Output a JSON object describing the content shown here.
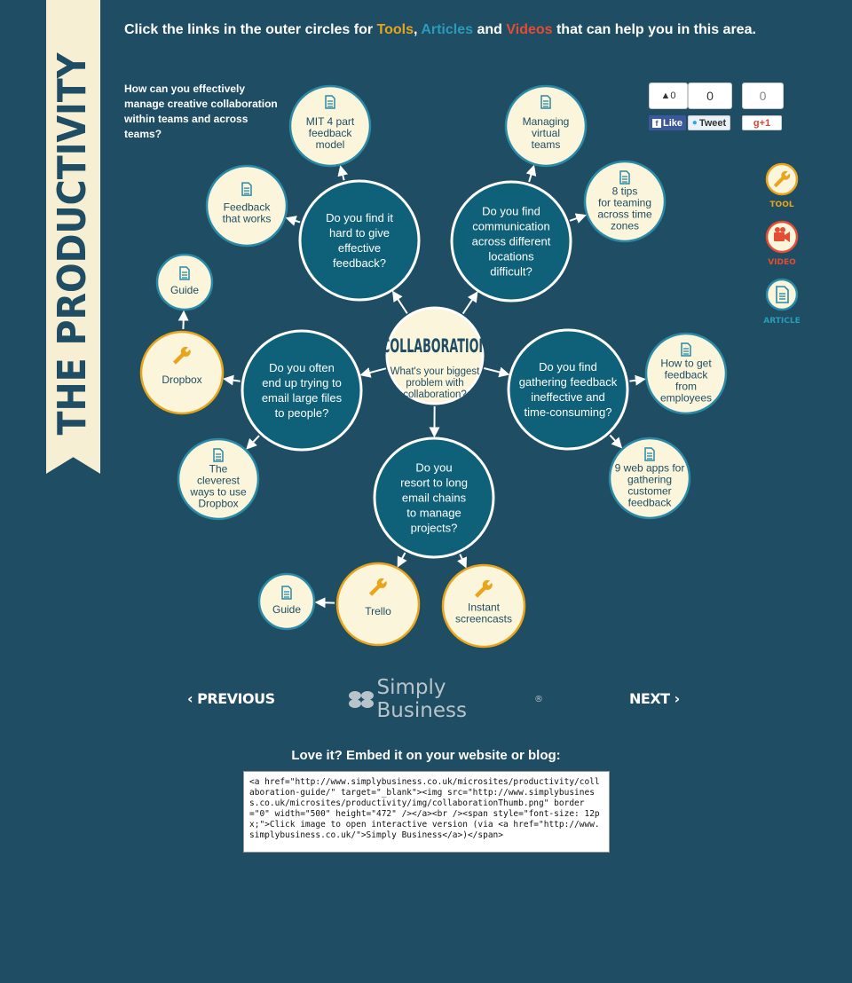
{
  "banner": {
    "title": "THE PRODUCTIVITY SERIES"
  },
  "headline": {
    "prefix": "Click the links in the outer circles for ",
    "tools": "Tools",
    "comma": ", ",
    "articles": "Articles",
    "and": " and ",
    "videos": "Videos",
    "suffix": " that can help you in this area."
  },
  "question": "How can you effectively manage creative collaboration within teams and across teams?",
  "social": {
    "fb_count": "0",
    "fb_label": "Like",
    "tw_count": "0",
    "tw_label": "Tweet",
    "gp_count": "0",
    "gp_label": "+1"
  },
  "legend": [
    {
      "type": "tool",
      "label": "TOOL",
      "icon": "wrench-icon",
      "color": "#e8a51c"
    },
    {
      "type": "video",
      "label": "VIDEO",
      "icon": "camera-icon",
      "color": "#e34d34"
    },
    {
      "type": "article",
      "label": "ARTICLE",
      "icon": "document-icon",
      "color": "#2a9bb8"
    }
  ],
  "colors": {
    "background": "#1f4d63",
    "hub_fill": "#0e6178",
    "node_fill": "#fbf5dc",
    "article_ring": "#2a8aa6",
    "tool_ring": "#e8a51c",
    "text_dark": "#1f4d63"
  },
  "diagram": {
    "center": {
      "title": "COLLABORATION",
      "subtitle": [
        "What's your biggest",
        "problem with",
        "collaboration?"
      ]
    },
    "problems": [
      {
        "id": "feedback",
        "lines": [
          "Do you find it",
          "hard to give",
          "effective",
          "feedback?"
        ]
      },
      {
        "id": "communication",
        "lines": [
          "Do you find",
          "communication",
          "across different",
          "locations",
          "difficult?"
        ]
      },
      {
        "id": "gathering",
        "lines": [
          "Do you find",
          "gathering feedback",
          "ineffective and",
          "time-consuming?"
        ]
      },
      {
        "id": "email-chains",
        "lines": [
          "Do you",
          "resort to long",
          "email chains",
          "to manage",
          "projects?"
        ]
      },
      {
        "id": "large-files",
        "lines": [
          "Do you often",
          "end up trying to",
          "email large files",
          "to people?"
        ]
      }
    ],
    "resources": [
      {
        "id": "mit",
        "type": "article",
        "lines": [
          "MIT 4 part",
          "feedback",
          "model"
        ]
      },
      {
        "id": "feedback-works",
        "type": "article",
        "lines": [
          "Feedback",
          "that works"
        ]
      },
      {
        "id": "virtual-teams",
        "type": "article",
        "lines": [
          "Managing",
          "virtual",
          "teams"
        ]
      },
      {
        "id": "teaming-tips",
        "type": "article",
        "lines": [
          "8 tips",
          "for teaming",
          "across time",
          "zones"
        ]
      },
      {
        "id": "employee-feedback",
        "type": "article",
        "lines": [
          "How to get",
          "feedback",
          "from",
          "employees"
        ]
      },
      {
        "id": "web-apps",
        "type": "article",
        "lines": [
          "9 web apps for",
          "gathering",
          "customer",
          "feedback"
        ]
      },
      {
        "id": "screencasts",
        "type": "tool",
        "lines": [
          "Instant",
          "screencasts"
        ]
      },
      {
        "id": "trello",
        "type": "tool",
        "lines": [
          "Trello"
        ]
      },
      {
        "id": "trello-guide",
        "type": "article",
        "lines": [
          "Guide"
        ]
      },
      {
        "id": "dropbox",
        "type": "tool",
        "lines": [
          "Dropbox"
        ]
      },
      {
        "id": "dropbox-guide",
        "type": "article",
        "lines": [
          "Guide"
        ]
      },
      {
        "id": "dropbox-ways",
        "type": "article",
        "lines": [
          "The",
          "cleverest",
          "ways to use",
          "Dropbox"
        ]
      }
    ]
  },
  "nav": {
    "previous": "‹ PREVIOUS",
    "next": "NEXT ›",
    "brand": "Simply Business",
    "brand_mark": "®"
  },
  "embed": {
    "title": "Love it? Embed it on your website or blog:",
    "code": "<a href=\"http://www.simplybusiness.co.uk/microsites/productivity/collaboration-guide/\" target=\"_blank\"><img src=\"http://www.simplybusiness.co.uk/microsites/productivity/img/collaborationThumb.png\" border=\"0\" width=\"500\" height=\"472\" /></a><br /><span style=\"font-size: 12px;\">Click image to open interactive version (via <a href=\"http://www.simplybusiness.co.uk/\">Simply Business</a>)</span>"
  }
}
